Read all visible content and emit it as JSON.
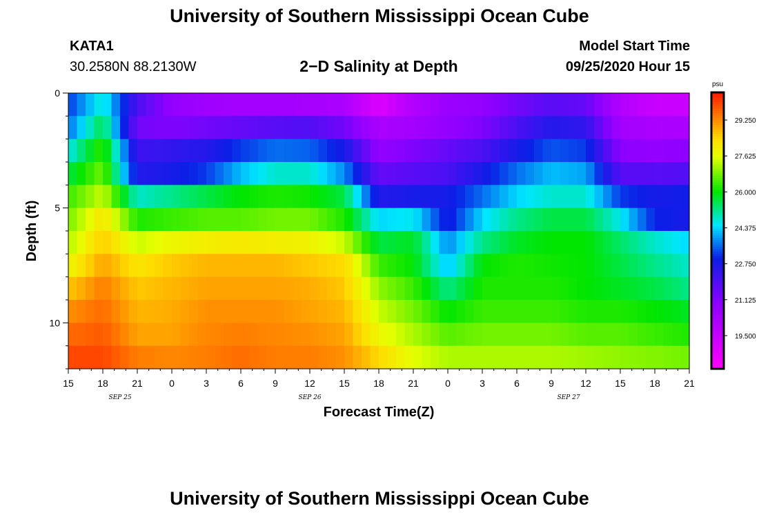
{
  "header": {
    "title": "University of Southern Mississippi Ocean Cube",
    "station": "KATA1",
    "coords": "30.2580N 88.2130W",
    "subtitle": "2−D Salinity at Depth",
    "start_label": "Model Start Time",
    "start_value": "09/25/2020 Hour 15"
  },
  "footer": {
    "title": "University of Southern Mississippi Ocean Cube"
  },
  "chart_data": {
    "type": "heatmap",
    "title": "2-D Salinity at Depth",
    "xlabel": "Forecast Time(Z)",
    "ylabel": "Depth (ft)",
    "x_range_hours": [
      0,
      54
    ],
    "y_range_ft": [
      0,
      12
    ],
    "x_ticks": [
      {
        "hour": 0,
        "label": "15"
      },
      {
        "hour": 3,
        "label": "18"
      },
      {
        "hour": 6,
        "label": "21"
      },
      {
        "hour": 9,
        "label": "0"
      },
      {
        "hour": 12,
        "label": "3"
      },
      {
        "hour": 15,
        "label": "6"
      },
      {
        "hour": 18,
        "label": "9"
      },
      {
        "hour": 21,
        "label": "12"
      },
      {
        "hour": 24,
        "label": "15"
      },
      {
        "hour": 27,
        "label": "18"
      },
      {
        "hour": 30,
        "label": "21"
      },
      {
        "hour": 33,
        "label": "0"
      },
      {
        "hour": 36,
        "label": "3"
      },
      {
        "hour": 39,
        "label": "6"
      },
      {
        "hour": 42,
        "label": "9"
      },
      {
        "hour": 45,
        "label": "12"
      },
      {
        "hour": 48,
        "label": "15"
      },
      {
        "hour": 51,
        "label": "18"
      },
      {
        "hour": 54,
        "label": "21"
      }
    ],
    "date_labels": [
      {
        "hour": 4.5,
        "label": "SEP 25"
      },
      {
        "hour": 21,
        "label": "SEP 26"
      },
      {
        "hour": 43.5,
        "label": "SEP 27"
      }
    ],
    "y_ticks": [
      {
        "depth": 0,
        "label": "0"
      },
      {
        "depth": 5,
        "label": "5"
      },
      {
        "depth": 10,
        "label": "10"
      }
    ],
    "depths_ft": [
      0,
      1,
      2,
      3,
      4,
      5,
      6,
      7,
      8,
      9,
      10,
      11
    ],
    "times_hours": [
      0,
      3,
      6,
      9,
      12,
      15,
      18,
      21,
      24,
      27,
      30,
      33,
      36,
      39,
      42,
      45,
      48,
      51,
      54
    ],
    "salinity_psu": [
      [
        23.2,
        24.8,
        22.0,
        20.8,
        20.5,
        20.4,
        20.4,
        20.3,
        20.2,
        18.9,
        20.0,
        20.6,
        20.8,
        21.4,
        21.8,
        21.6,
        20.0,
        19.4,
        19.4
      ],
      [
        23.6,
        25.6,
        21.4,
        21.2,
        21.4,
        21.6,
        21.8,
        21.9,
        21.4,
        20.2,
        20.4,
        20.8,
        21.2,
        22.0,
        22.6,
        22.4,
        20.4,
        20.2,
        20.2
      ],
      [
        24.6,
        26.4,
        22.2,
        22.4,
        22.6,
        23.2,
        23.6,
        23.5,
        22.8,
        20.8,
        21.2,
        21.6,
        22.0,
        22.8,
        23.4,
        23.2,
        21.0,
        20.8,
        21.0
      ],
      [
        25.6,
        26.8,
        22.6,
        22.8,
        23.2,
        24.2,
        24.8,
        24.8,
        23.8,
        21.6,
        21.8,
        22.0,
        22.8,
        23.6,
        24.2,
        24.0,
        21.8,
        21.8,
        21.9
      ],
      [
        26.4,
        27.4,
        24.8,
        25.2,
        25.6,
        26.0,
        26.2,
        26.1,
        25.6,
        22.6,
        22.8,
        22.8,
        23.6,
        24.4,
        24.8,
        24.8,
        23.2,
        22.8,
        22.9
      ],
      [
        26.8,
        28.2,
        26.2,
        26.4,
        26.6,
        26.6,
        26.8,
        26.8,
        26.2,
        24.4,
        24.6,
        22.8,
        24.4,
        25.2,
        25.6,
        25.6,
        24.6,
        23.0,
        22.8
      ],
      [
        27.2,
        28.6,
        27.4,
        27.8,
        28.0,
        28.1,
        28.0,
        27.9,
        27.4,
        25.6,
        25.8,
        23.8,
        25.2,
        25.8,
        26.0,
        26.0,
        25.4,
        24.8,
        24.4
      ],
      [
        27.8,
        29.0,
        28.2,
        28.6,
        28.8,
        28.8,
        28.8,
        28.6,
        28.4,
        26.4,
        26.0,
        24.2,
        26.0,
        26.2,
        26.1,
        26.0,
        25.6,
        25.2,
        24.8
      ],
      [
        28.6,
        29.4,
        28.6,
        28.8,
        29.0,
        29.0,
        29.0,
        28.9,
        28.6,
        27.0,
        26.4,
        25.2,
        26.2,
        26.2,
        26.2,
        26.0,
        25.8,
        25.6,
        25.2
      ],
      [
        29.2,
        29.6,
        28.8,
        28.9,
        29.2,
        29.2,
        29.2,
        29.0,
        28.8,
        27.4,
        26.8,
        26.0,
        26.4,
        26.4,
        26.4,
        26.2,
        26.2,
        26.0,
        25.8
      ],
      [
        29.6,
        29.8,
        29.0,
        29.0,
        29.3,
        29.4,
        29.3,
        29.2,
        29.0,
        27.8,
        27.2,
        26.6,
        26.8,
        26.8,
        26.8,
        26.6,
        26.6,
        26.4,
        26.2
      ],
      [
        30.0,
        30.0,
        29.4,
        29.3,
        29.4,
        29.6,
        29.4,
        29.4,
        29.2,
        28.4,
        27.6,
        27.2,
        27.2,
        27.2,
        27.2,
        27.1,
        27.0,
        26.9,
        26.8
      ]
    ],
    "colorbar": {
      "unit": "psu",
      "range": [
        18.0,
        30.5
      ],
      "ticks": [
        "29.250",
        "27.625",
        "26.000",
        "24.375",
        "22.750",
        "21.125",
        "19.500"
      ],
      "tick_values": [
        29.25,
        27.625,
        26.0,
        24.375,
        22.75,
        21.125,
        19.5
      ],
      "stops": [
        {
          "v": 18.0,
          "color": "#ff00ff"
        },
        {
          "v": 21.0,
          "color": "#8c00ff"
        },
        {
          "v": 23.0,
          "color": "#0a1fe6"
        },
        {
          "v": 24.5,
          "color": "#00e6ff"
        },
        {
          "v": 26.0,
          "color": "#00e600"
        },
        {
          "v": 27.6,
          "color": "#e6ff00"
        },
        {
          "v": 28.4,
          "color": "#ffdc00"
        },
        {
          "v": 29.2,
          "color": "#ff9000"
        },
        {
          "v": 30.5,
          "color": "#ff1a00"
        }
      ]
    }
  }
}
